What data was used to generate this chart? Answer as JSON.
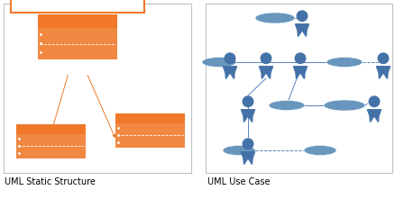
{
  "title_left": "UML Static Structure",
  "title_right": "UML Use Case",
  "bg_color": "#ffffff",
  "panel_border_color": "#c0c0c0",
  "orange": "#F07828",
  "blue_actor": "#4472A8",
  "blue_oval": "#5B8DB8",
  "label_fontsize": 7.0
}
